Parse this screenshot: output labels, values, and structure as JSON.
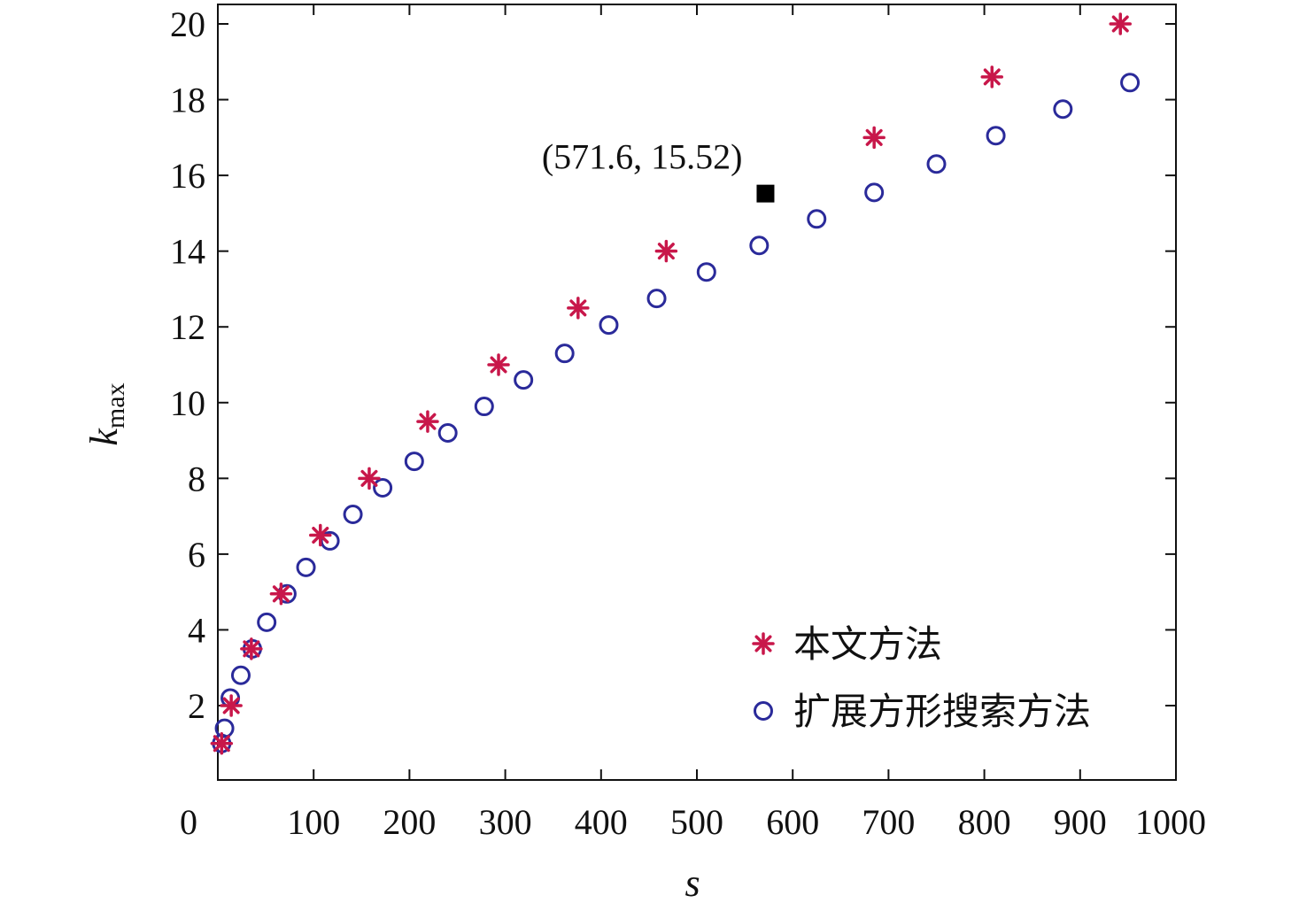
{
  "chart_data": {
    "type": "scatter",
    "title": "",
    "xlabel": "s",
    "ylabel": "k",
    "ylabel_sub": "max",
    "xlim": [
      0,
      1000
    ],
    "ylim": [
      1,
      20
    ],
    "xticks": [
      0,
      100,
      200,
      300,
      400,
      500,
      600,
      700,
      800,
      900,
      1000
    ],
    "yticks": [
      2,
      4,
      6,
      8,
      10,
      12,
      14,
      16,
      18,
      20
    ],
    "xtick_labels": [
      "0",
      "100",
      "200",
      "300",
      "400",
      "500",
      "600",
      "700",
      "800",
      "900",
      "1000"
    ],
    "ytick_labels": [
      "2",
      "4",
      "6",
      "8",
      "10",
      "12",
      "14",
      "16",
      "18",
      "20"
    ],
    "grid": false,
    "legend_position": "bottom-right",
    "series": [
      {
        "name": "本文方法",
        "marker": "asterisk",
        "color": "#c8174a",
        "x": [
          4,
          14,
          35,
          66,
          107,
          158,
          219,
          293,
          376,
          468,
          685,
          808,
          942
        ],
        "y": [
          1.0,
          2.0,
          3.5,
          4.95,
          6.5,
          8.0,
          9.5,
          11.0,
          12.5,
          14.0,
          17.0,
          18.6,
          20.0
        ]
      },
      {
        "name": "扩展方形搜索方法",
        "marker": "circle",
        "color": "#2a2a9a",
        "x": [
          4,
          7,
          13,
          24,
          36,
          51,
          72,
          92,
          117,
          141,
          172,
          205,
          240,
          278,
          319,
          362,
          408,
          458,
          510,
          565,
          625,
          685,
          750,
          812,
          882,
          952
        ],
        "y": [
          1.0,
          1.4,
          2.2,
          2.8,
          3.5,
          4.2,
          4.95,
          5.65,
          6.35,
          7.05,
          7.75,
          8.45,
          9.2,
          9.9,
          10.6,
          11.3,
          12.05,
          12.75,
          13.45,
          14.15,
          14.85,
          15.55,
          16.3,
          17.05,
          17.75,
          18.45
        ]
      }
    ],
    "annotation": {
      "text": "(571.6, 15.52)",
      "x": 571.6,
      "y": 15.52,
      "color": "#000000"
    }
  }
}
